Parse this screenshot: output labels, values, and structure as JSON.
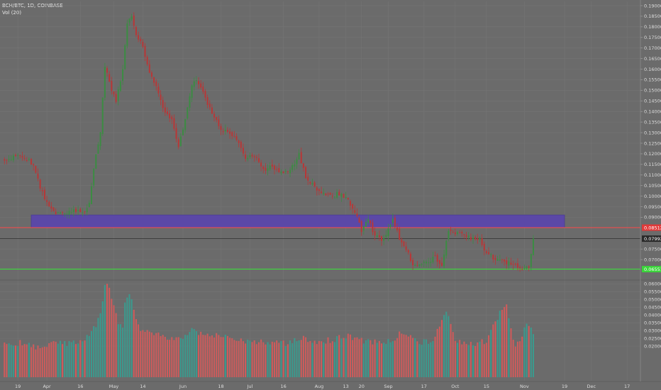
{
  "header": {
    "symbol": "BCH/BTC, 1D, COINBASE",
    "volume_label": "Vol (20)"
  },
  "colors": {
    "background": "#6b6b6b",
    "bull": "#3c8c43",
    "bear": "#b83737",
    "vol_bull": "#3b9a8e",
    "vol_bear": "#cf5b5b",
    "zone": "#5b48a7",
    "resistance": "#ff4a4a",
    "support": "#39e639",
    "price_line": "#2f2f2f",
    "grid": "#757575",
    "axis_text": "#dcdcdc"
  },
  "chart_data": {
    "type": "candlestick",
    "title": "BCH/BTC, 1D, COINBASE",
    "x_ticks": [
      {
        "label": "19",
        "x": "2018-03-19"
      },
      {
        "label": "Apr",
        "x": "2018-04-01"
      },
      {
        "label": "16",
        "x": "2018-04-16"
      },
      {
        "label": "May",
        "x": "2018-05-01"
      },
      {
        "label": "14",
        "x": "2018-05-14"
      },
      {
        "label": "Jun",
        "x": "2018-06-01"
      },
      {
        "label": "18",
        "x": "2018-06-18"
      },
      {
        "label": "Jul",
        "x": "2018-07-01"
      },
      {
        "label": "16",
        "x": "2018-07-16"
      },
      {
        "label": "Aug",
        "x": "2018-08-01"
      },
      {
        "label": "13",
        "x": "2018-08-13"
      },
      {
        "label": "20",
        "x": "2018-08-20"
      },
      {
        "label": "Sep",
        "x": "2018-09-01"
      },
      {
        "label": "17",
        "x": "2018-09-17"
      },
      {
        "label": "Oct",
        "x": "2018-10-01"
      },
      {
        "label": "15",
        "x": "2018-10-15"
      },
      {
        "label": "Nov",
        "x": "2018-11-01"
      },
      {
        "label": "19",
        "x": "2018-11-19"
      },
      {
        "label": "Dec",
        "x": "2018-12-01"
      },
      {
        "label": "17",
        "x": "2018-12-17"
      }
    ],
    "price_axis": {
      "ylim": [
        0.061,
        0.192
      ],
      "ticks": [
        "0.19000",
        "0.18500",
        "0.18000",
        "0.17500",
        "0.17000",
        "0.16500",
        "0.16000",
        "0.15500",
        "0.15000",
        "0.14500",
        "0.14000",
        "0.13500",
        "0.13000",
        "0.12500",
        "0.12000",
        "0.11500",
        "0.11000",
        "0.10500",
        "0.10000",
        "0.09500",
        "0.09000",
        "0.07500",
        "0.07000"
      ]
    },
    "volume_axis": {
      "ylim": [
        0,
        0.0615
      ],
      "ticks": [
        "0.06000",
        "0.05500",
        "0.05000",
        "0.04500",
        "0.04000",
        "0.03500",
        "0.03000",
        "0.02500",
        "0.02000"
      ]
    },
    "markers": {
      "resistance": {
        "value": 0.08512,
        "label": "0.08512"
      },
      "last_price": {
        "value": 0.07992,
        "label": "0.07992"
      },
      "support": {
        "value": 0.06551,
        "label": "0.06551"
      }
    },
    "zone": {
      "from_date": "2018-03-25",
      "to_date": "2018-11-19",
      "low": 0.08512,
      "high": 0.0911
    },
    "price_series": [
      {
        "date": "2018-03-13",
        "close": 0.117
      },
      {
        "date": "2018-03-17",
        "close": 0.1185
      },
      {
        "date": "2018-03-20",
        "close": 0.1195
      },
      {
        "date": "2018-03-23",
        "close": 0.1175
      },
      {
        "date": "2018-03-26",
        "close": 0.1145
      },
      {
        "date": "2018-03-29",
        "close": 0.104
      },
      {
        "date": "2018-04-01",
        "close": 0.097
      },
      {
        "date": "2018-04-05",
        "close": 0.0925
      },
      {
        "date": "2018-04-09",
        "close": 0.0915
      },
      {
        "date": "2018-04-14",
        "close": 0.0935
      },
      {
        "date": "2018-04-17",
        "close": 0.092
      },
      {
        "date": "2018-04-20",
        "close": 0.097
      },
      {
        "date": "2018-04-22",
        "close": 0.114
      },
      {
        "date": "2018-04-25",
        "close": 0.13
      },
      {
        "date": "2018-04-27",
        "close": 0.162
      },
      {
        "date": "2018-04-30",
        "close": 0.15
      },
      {
        "date": "2018-05-02",
        "close": 0.145
      },
      {
        "date": "2018-05-05",
        "close": 0.16
      },
      {
        "date": "2018-05-07",
        "close": 0.182
      },
      {
        "date": "2018-05-09",
        "close": 0.185
      },
      {
        "date": "2018-05-11",
        "close": 0.176
      },
      {
        "date": "2018-05-14",
        "close": 0.171
      },
      {
        "date": "2018-05-17",
        "close": 0.158
      },
      {
        "date": "2018-05-20",
        "close": 0.151
      },
      {
        "date": "2018-05-24",
        "close": 0.139
      },
      {
        "date": "2018-05-27",
        "close": 0.136
      },
      {
        "date": "2018-05-30",
        "close": 0.124
      },
      {
        "date": "2018-06-02",
        "close": 0.136
      },
      {
        "date": "2018-06-05",
        "close": 0.152
      },
      {
        "date": "2018-06-07",
        "close": 0.155
      },
      {
        "date": "2018-06-10",
        "close": 0.149
      },
      {
        "date": "2018-06-14",
        "close": 0.139
      },
      {
        "date": "2018-06-18",
        "close": 0.131
      },
      {
        "date": "2018-06-22",
        "close": 0.13
      },
      {
        "date": "2018-06-26",
        "close": 0.125
      },
      {
        "date": "2018-06-29",
        "close": 0.118
      },
      {
        "date": "2018-07-03",
        "close": 0.119
      },
      {
        "date": "2018-07-07",
        "close": 0.112
      },
      {
        "date": "2018-07-11",
        "close": 0.114
      },
      {
        "date": "2018-07-16",
        "close": 0.111
      },
      {
        "date": "2018-07-19",
        "close": 0.112
      },
      {
        "date": "2018-07-23",
        "close": 0.12
      },
      {
        "date": "2018-07-26",
        "close": 0.109
      },
      {
        "date": "2018-07-30",
        "close": 0.104
      },
      {
        "date": "2018-08-03",
        "close": 0.1015
      },
      {
        "date": "2018-08-07",
        "close": 0.1005
      },
      {
        "date": "2018-08-11",
        "close": 0.1015
      },
      {
        "date": "2018-08-14",
        "close": 0.0975
      },
      {
        "date": "2018-08-17",
        "close": 0.093
      },
      {
        "date": "2018-08-20",
        "close": 0.084
      },
      {
        "date": "2018-08-23",
        "close": 0.089
      },
      {
        "date": "2018-08-26",
        "close": 0.081
      },
      {
        "date": "2018-08-30",
        "close": 0.079
      },
      {
        "date": "2018-09-03",
        "close": 0.0895
      },
      {
        "date": "2018-09-06",
        "close": 0.08
      },
      {
        "date": "2018-09-09",
        "close": 0.075
      },
      {
        "date": "2018-09-12",
        "close": 0.068
      },
      {
        "date": "2018-09-15",
        "close": 0.067
      },
      {
        "date": "2018-09-19",
        "close": 0.069
      },
      {
        "date": "2018-09-22",
        "close": 0.071
      },
      {
        "date": "2018-09-25",
        "close": 0.067
      },
      {
        "date": "2018-09-28",
        "close": 0.084
      },
      {
        "date": "2018-10-01",
        "close": 0.083
      },
      {
        "date": "2018-10-04",
        "close": 0.082
      },
      {
        "date": "2018-10-08",
        "close": 0.08
      },
      {
        "date": "2018-10-12",
        "close": 0.0795
      },
      {
        "date": "2018-10-15",
        "close": 0.073
      },
      {
        "date": "2018-10-18",
        "close": 0.071
      },
      {
        "date": "2018-10-22",
        "close": 0.069
      },
      {
        "date": "2018-10-26",
        "close": 0.068
      },
      {
        "date": "2018-10-30",
        "close": 0.0665
      },
      {
        "date": "2018-11-01",
        "close": 0.0655
      },
      {
        "date": "2018-11-03",
        "close": 0.067
      },
      {
        "date": "2018-11-05",
        "close": 0.0799
      }
    ],
    "volume_series": [
      {
        "date": "2018-03-13",
        "value": 0.021
      },
      {
        "date": "2018-03-20",
        "value": 0.022
      },
      {
        "date": "2018-03-27",
        "value": 0.0195
      },
      {
        "date": "2018-04-03",
        "value": 0.022
      },
      {
        "date": "2018-04-10",
        "value": 0.022
      },
      {
        "date": "2018-04-16",
        "value": 0.024
      },
      {
        "date": "2018-04-20",
        "value": 0.027
      },
      {
        "date": "2018-04-23",
        "value": 0.034
      },
      {
        "date": "2018-04-25",
        "value": 0.041
      },
      {
        "date": "2018-04-27",
        "value": 0.058
      },
      {
        "date": "2018-04-28",
        "value": 0.061
      },
      {
        "date": "2018-04-30",
        "value": 0.052
      },
      {
        "date": "2018-05-03",
        "value": 0.035
      },
      {
        "date": "2018-05-05",
        "value": 0.032
      },
      {
        "date": "2018-05-06",
        "value": 0.048
      },
      {
        "date": "2018-05-08",
        "value": 0.054
      },
      {
        "date": "2018-05-10",
        "value": 0.044
      },
      {
        "date": "2018-05-13",
        "value": 0.029
      },
      {
        "date": "2018-05-18",
        "value": 0.028
      },
      {
        "date": "2018-05-25",
        "value": 0.026
      },
      {
        "date": "2018-06-01",
        "value": 0.024
      },
      {
        "date": "2018-06-05",
        "value": 0.031
      },
      {
        "date": "2018-06-12",
        "value": 0.026
      },
      {
        "date": "2018-06-18",
        "value": 0.027
      },
      {
        "date": "2018-06-25",
        "value": 0.024
      },
      {
        "date": "2018-07-02",
        "value": 0.022
      },
      {
        "date": "2018-07-10",
        "value": 0.023
      },
      {
        "date": "2018-07-17",
        "value": 0.022
      },
      {
        "date": "2018-07-24",
        "value": 0.025
      },
      {
        "date": "2018-07-31",
        "value": 0.023
      },
      {
        "date": "2018-08-07",
        "value": 0.024
      },
      {
        "date": "2018-08-14",
        "value": 0.027
      },
      {
        "date": "2018-08-21",
        "value": 0.023
      },
      {
        "date": "2018-08-28",
        "value": 0.022
      },
      {
        "date": "2018-09-04",
        "value": 0.024
      },
      {
        "date": "2018-09-07",
        "value": 0.03
      },
      {
        "date": "2018-09-14",
        "value": 0.022
      },
      {
        "date": "2018-09-21",
        "value": 0.023
      },
      {
        "date": "2018-09-27",
        "value": 0.044
      },
      {
        "date": "2018-10-01",
        "value": 0.023
      },
      {
        "date": "2018-10-08",
        "value": 0.021
      },
      {
        "date": "2018-10-15",
        "value": 0.0235
      },
      {
        "date": "2018-10-22",
        "value": 0.044
      },
      {
        "date": "2018-10-24",
        "value": 0.046
      },
      {
        "date": "2018-10-28",
        "value": 0.019
      },
      {
        "date": "2018-11-02",
        "value": 0.0335
      },
      {
        "date": "2018-11-05",
        "value": 0.029
      }
    ]
  }
}
